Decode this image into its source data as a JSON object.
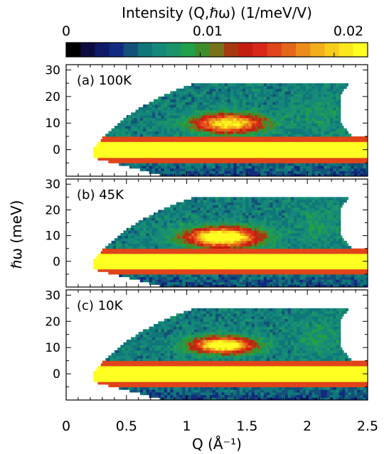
{
  "colorbar": {
    "title": "Intensity (Q,ℏω) (1/meV/V)",
    "ticks": [
      "0",
      "0.01",
      "0.02"
    ],
    "tick_values": [
      0,
      0.01,
      0.02
    ],
    "range": [
      0,
      0.0225
    ],
    "colors": [
      "#000000",
      "#0c0c40",
      "#101a66",
      "#122a80",
      "#14507a",
      "#10767a",
      "#16887a",
      "#1a9468",
      "#22a04a",
      "#3e8c2c",
      "#78721c",
      "#a63a12",
      "#c41e10",
      "#d8281a",
      "#e0441a",
      "#e4661a",
      "#ec8c1c",
      "#f2ae1c",
      "#f8cc1c",
      "#fce61e",
      "#ffff22"
    ]
  },
  "chart_data": {
    "type": "heatmap",
    "xlabel": "Q (Å⁻¹)",
    "ylabel": "ℏω (meV)",
    "xlim": [
      0,
      2.5
    ],
    "ylim": [
      -10,
      32
    ],
    "xticks": [
      "0",
      "0.5",
      "1",
      "1.5",
      "2",
      "2.5"
    ],
    "xtick_values": [
      0,
      0.5,
      1,
      1.5,
      2,
      2.5
    ],
    "yticks": [
      "0",
      "10",
      "20",
      "30"
    ],
    "ytick_values": [
      0,
      10,
      20,
      30
    ],
    "panels": [
      {
        "label": "(a) 100K",
        "temperature_K": 100,
        "inelastic_peak": {
          "Q_center": 1.35,
          "E_center": 10,
          "Q_width": 0.28,
          "E_width": 3.6,
          "max_intensity": 0.0165
        },
        "elastic_line": {
          "E_center": 0,
          "E_halfwidth": 3,
          "intensity": 0.022
        }
      },
      {
        "label": "(b) 45K",
        "temperature_K": 45,
        "inelastic_peak": {
          "Q_center": 1.3,
          "E_center": 9.5,
          "Q_width": 0.3,
          "E_width": 3.8,
          "max_intensity": 0.02
        },
        "elastic_line": {
          "E_center": 0,
          "E_halfwidth": 3,
          "intensity": 0.022
        }
      },
      {
        "label": "(c) 10K",
        "temperature_K": 10,
        "inelastic_peak": {
          "Q_center": 1.3,
          "E_center": 11,
          "Q_width": 0.25,
          "E_width": 3.0,
          "max_intensity": 0.02
        },
        "elastic_line": {
          "E_center": 0,
          "E_halfwidth": 3,
          "intensity": 0.022
        }
      }
    ]
  }
}
